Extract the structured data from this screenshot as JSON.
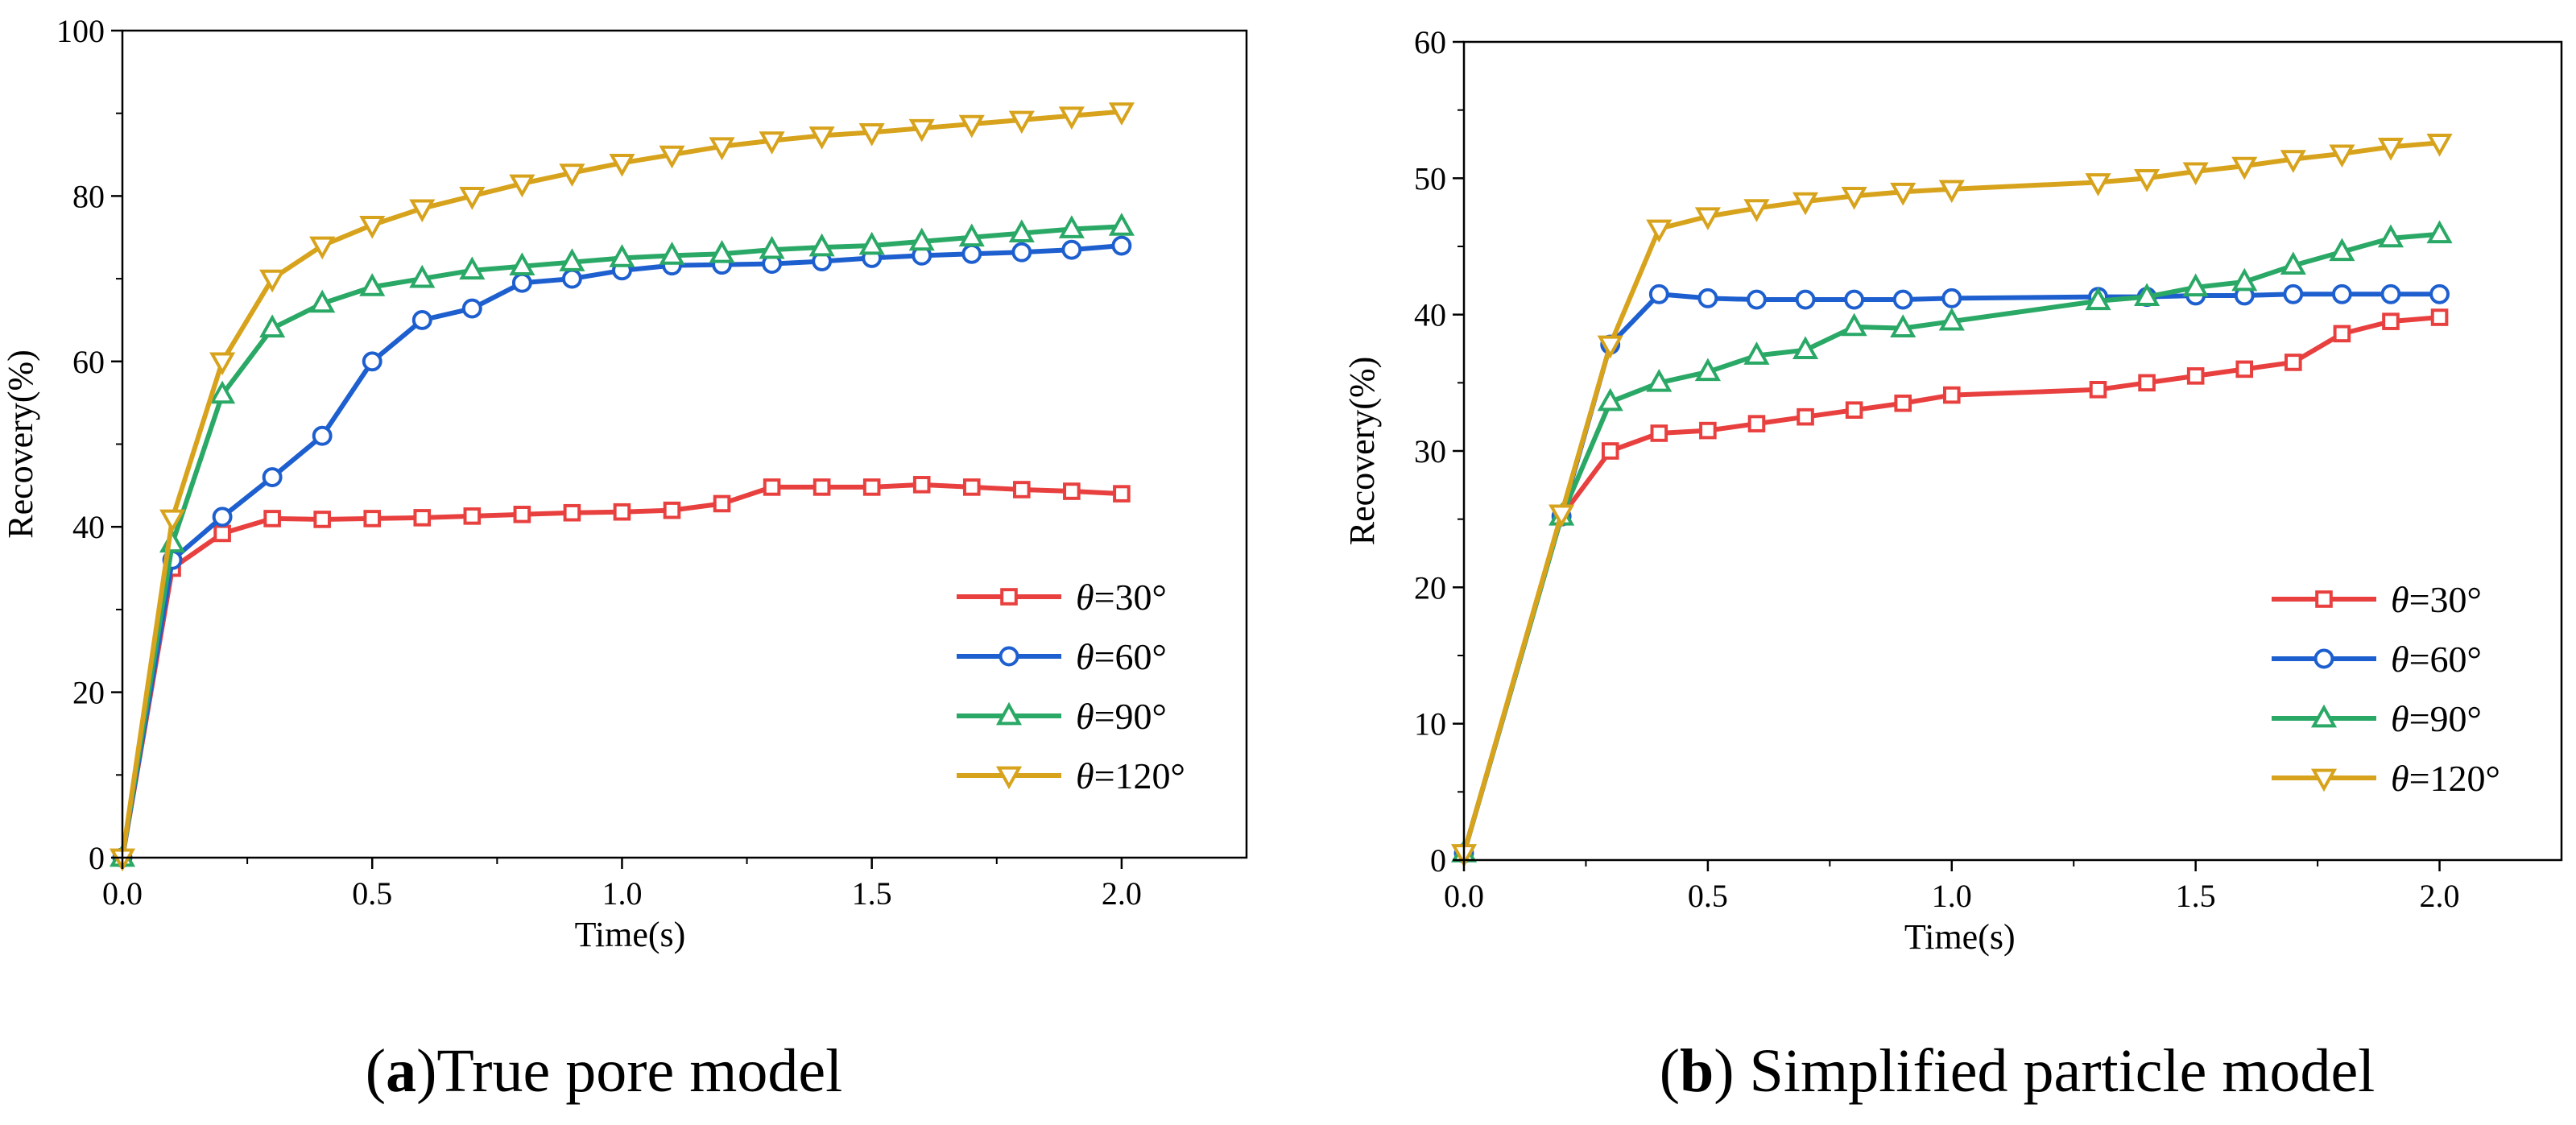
{
  "chart_data": [
    {
      "type": "line",
      "panel_label": "a",
      "caption": "True pore model",
      "xlabel": "Time(s)",
      "ylabel": "Recovery(%)",
      "xlim": [
        0,
        2.25
      ],
      "ylim": [
        0,
        100
      ],
      "xticks": [
        0.0,
        0.5,
        1.0,
        1.5,
        2.0
      ],
      "xtick_labels": [
        "0.0",
        "0.5",
        "1.0",
        "1.5",
        "2.0"
      ],
      "yticks": [
        0,
        20,
        40,
        60,
        80,
        100
      ],
      "ytick_labels": [
        "0",
        "20",
        "40",
        "60",
        "80",
        "100"
      ],
      "legend_position": "bottom-right",
      "series": [
        {
          "name": "θ=30°",
          "theta_symbol": "θ",
          "label_value": "=30°",
          "color": "#e8403f",
          "marker": "square",
          "x": [
            0,
            0.1,
            0.2,
            0.3,
            0.4,
            0.5,
            0.6,
            0.7,
            0.8,
            0.9,
            1.0,
            1.1,
            1.2,
            1.3,
            1.4,
            1.5,
            1.6,
            1.7,
            1.8,
            1.9,
            2.0
          ],
          "values": [
            0,
            35,
            39.2,
            41,
            40.9,
            41,
            41.1,
            41.3,
            41.5,
            41.7,
            41.8,
            42,
            42.8,
            44.8,
            44.8,
            44.8,
            45.1,
            44.8,
            44.5,
            44.3,
            44
          ]
        },
        {
          "name": "θ=60°",
          "theta_symbol": "θ",
          "label_value": "=60°",
          "color": "#1e5fcf",
          "marker": "circle",
          "x": [
            0,
            0.1,
            0.2,
            0.3,
            0.4,
            0.5,
            0.6,
            0.7,
            0.8,
            0.9,
            1.0,
            1.1,
            1.2,
            1.3,
            1.4,
            1.5,
            1.6,
            1.7,
            1.8,
            1.9,
            2.0
          ],
          "values": [
            0,
            36,
            41.2,
            46,
            51,
            60,
            65,
            66.4,
            69.5,
            70,
            71,
            71.6,
            71.7,
            71.8,
            72.1,
            72.5,
            72.8,
            73,
            73.2,
            73.5,
            74
          ]
        },
        {
          "name": "θ=90°",
          "theta_symbol": "θ",
          "label_value": "=90°",
          "color": "#2aa866",
          "marker": "triangle-up",
          "x": [
            0,
            0.1,
            0.2,
            0.3,
            0.4,
            0.5,
            0.6,
            0.7,
            0.8,
            0.9,
            1.0,
            1.1,
            1.2,
            1.3,
            1.4,
            1.5,
            1.6,
            1.7,
            1.8,
            1.9,
            2.0
          ],
          "values": [
            0,
            38,
            56,
            64,
            67,
            69,
            70,
            71,
            71.5,
            72,
            72.5,
            72.8,
            73,
            73.5,
            73.8,
            74,
            74.5,
            75,
            75.5,
            76,
            76.3
          ]
        },
        {
          "name": "θ=120°",
          "theta_symbol": "θ",
          "label_value": "=120°",
          "color": "#d8a31c",
          "marker": "triangle-down",
          "x": [
            0,
            0.1,
            0.2,
            0.3,
            0.4,
            0.5,
            0.6,
            0.7,
            0.8,
            0.9,
            1.0,
            1.1,
            1.2,
            1.3,
            1.4,
            1.5,
            1.6,
            1.7,
            1.8,
            1.9,
            2.0
          ],
          "values": [
            0,
            41,
            60,
            70,
            74,
            76.5,
            78.5,
            80,
            81.5,
            82.8,
            84,
            85,
            86,
            86.7,
            87.3,
            87.7,
            88.2,
            88.7,
            89.2,
            89.7,
            90.2
          ]
        }
      ]
    },
    {
      "type": "line",
      "panel_label": "b",
      "caption": " Simplified particle model",
      "xlabel": "Time(s)",
      "ylabel": "Recovery(%)",
      "xlim": [
        0,
        2.25
      ],
      "ylim": [
        0,
        60
      ],
      "xticks": [
        0.0,
        0.5,
        1.0,
        1.5,
        2.0
      ],
      "xtick_labels": [
        "0.0",
        "0.5",
        "1.0",
        "1.5",
        "2.0"
      ],
      "yticks": [
        0,
        10,
        20,
        30,
        40,
        50,
        60
      ],
      "ytick_labels": [
        "0",
        "10",
        "20",
        "30",
        "40",
        "50",
        "60"
      ],
      "legend_position": "bottom-right",
      "series": [
        {
          "name": "θ=30°",
          "theta_symbol": "θ",
          "label_value": "=30°",
          "color": "#e8403f",
          "marker": "square",
          "x": [
            0,
            0.2,
            0.3,
            0.4,
            0.5,
            0.6,
            0.7,
            0.8,
            0.9,
            1.0,
            1.3,
            1.4,
            1.5,
            1.6,
            1.7,
            1.8,
            1.9,
            2.0
          ],
          "values": [
            0.5,
            25.2,
            30,
            31.3,
            31.5,
            32,
            32.5,
            33,
            33.5,
            34.1,
            34.5,
            35,
            35.5,
            36,
            36.5,
            38.6,
            39.5,
            39.8
          ]
        },
        {
          "name": "θ=60°",
          "theta_symbol": "θ",
          "label_value": "=60°",
          "color": "#1e5fcf",
          "marker": "circle",
          "x": [
            0,
            0.2,
            0.3,
            0.4,
            0.5,
            0.6,
            0.7,
            0.8,
            0.9,
            1.0,
            1.3,
            1.4,
            1.5,
            1.6,
            1.7,
            1.8,
            1.9,
            2.0
          ],
          "values": [
            0.5,
            25.2,
            37.8,
            41.5,
            41.2,
            41.1,
            41.1,
            41.1,
            41.1,
            41.2,
            41.3,
            41.3,
            41.4,
            41.4,
            41.5,
            41.5,
            41.5,
            41.5
          ]
        },
        {
          "name": "θ=90°",
          "theta_symbol": "θ",
          "label_value": "=90°",
          "color": "#2aa866",
          "marker": "triangle-up",
          "x": [
            0,
            0.2,
            0.3,
            0.4,
            0.5,
            0.6,
            0.7,
            0.8,
            0.9,
            1.0,
            1.3,
            1.4,
            1.5,
            1.6,
            1.7,
            1.8,
            1.9,
            2.0
          ],
          "values": [
            0.5,
            25.2,
            33.6,
            35,
            35.8,
            37,
            37.4,
            39.1,
            39,
            39.5,
            41,
            41.3,
            42,
            42.4,
            43.6,
            44.6,
            45.6,
            45.9
          ]
        },
        {
          "name": "θ=120°",
          "theta_symbol": "θ",
          "label_value": "=120°",
          "color": "#d8a31c",
          "marker": "triangle-down",
          "x": [
            0,
            0.2,
            0.3,
            0.4,
            0.5,
            0.6,
            0.7,
            0.8,
            0.9,
            1.0,
            1.3,
            1.4,
            1.5,
            1.6,
            1.7,
            1.8,
            1.9,
            2.0
          ],
          "values": [
            0.5,
            25.4,
            37.8,
            46.3,
            47.2,
            47.8,
            48.3,
            48.7,
            49,
            49.2,
            49.7,
            50,
            50.5,
            50.9,
            51.4,
            51.8,
            52.3,
            52.6
          ]
        }
      ]
    }
  ]
}
